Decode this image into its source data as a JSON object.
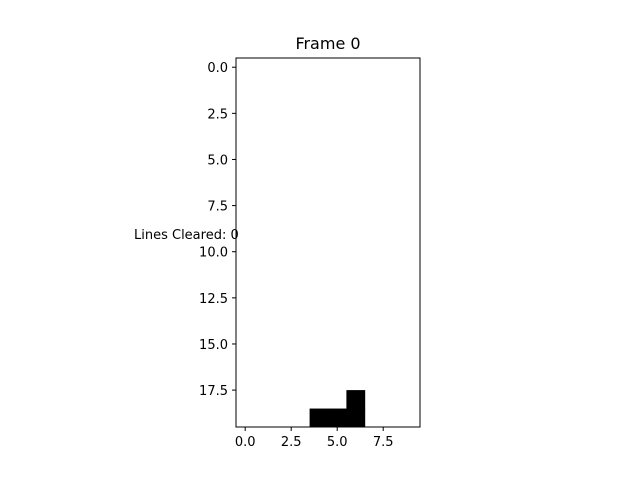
{
  "title": "Frame 0",
  "lines_cleared_text": "Lines Cleared: 0",
  "board": {
    "columns": 10,
    "rows": 20,
    "filled_cells": [
      {
        "col": 6,
        "row": 18
      },
      {
        "col": 4,
        "row": 19
      },
      {
        "col": 5,
        "row": 19
      },
      {
        "col": 6,
        "row": 19
      }
    ],
    "filled_color": "#000000",
    "empty_color": "#ffffff"
  },
  "axes": {
    "x_ticks": [
      {
        "value": 0.0,
        "label": "0.0"
      },
      {
        "value": 2.5,
        "label": "2.5"
      },
      {
        "value": 5.0,
        "label": "5.0"
      },
      {
        "value": 7.5,
        "label": "7.5"
      }
    ],
    "y_ticks": [
      {
        "value": 0.0,
        "label": "0.0"
      },
      {
        "value": 2.5,
        "label": "2.5"
      },
      {
        "value": 5.0,
        "label": "5.0"
      },
      {
        "value": 7.5,
        "label": "7.5"
      },
      {
        "value": 10.0,
        "label": "10.0"
      },
      {
        "value": 12.5,
        "label": "12.5"
      },
      {
        "value": 15.0,
        "label": "15.0"
      },
      {
        "value": 17.5,
        "label": "17.5"
      }
    ],
    "x_range": [
      -0.5,
      9.5
    ],
    "y_range": [
      19.5,
      -0.5
    ]
  }
}
